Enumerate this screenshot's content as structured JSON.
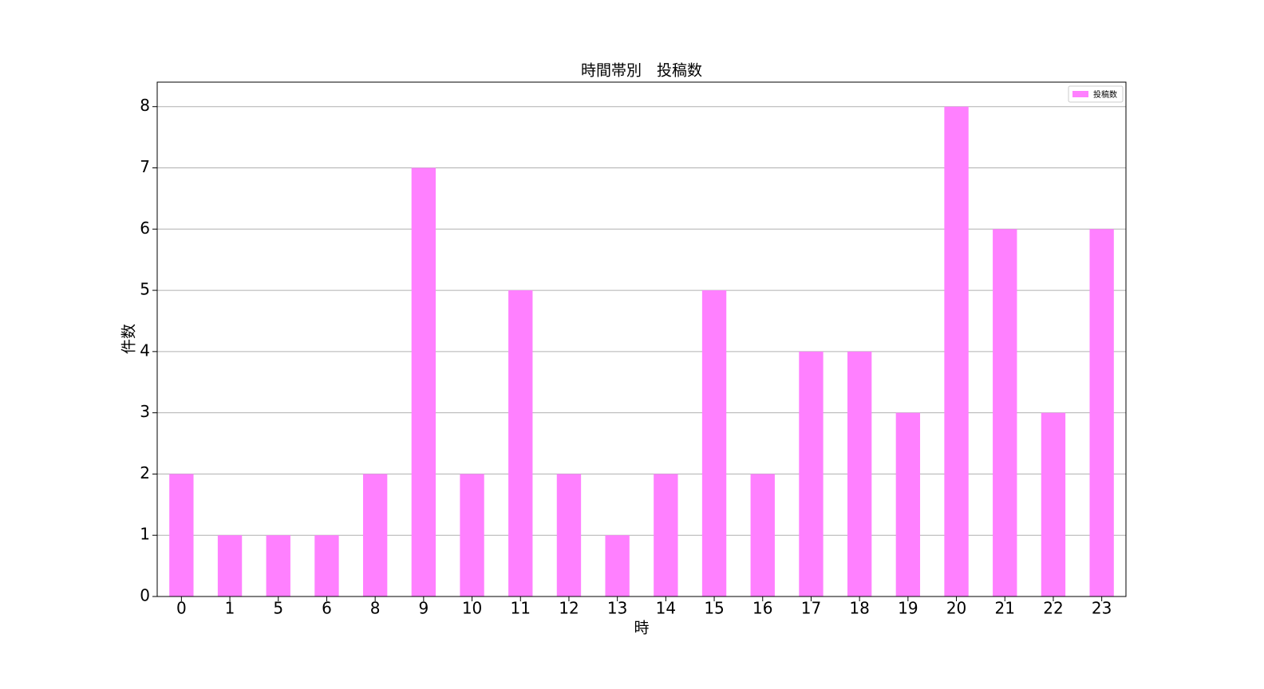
{
  "chart_data": {
    "type": "bar",
    "title": "時間帯別　投稿数",
    "x_label": "時",
    "y_label": "件数",
    "categories": [
      "0",
      "1",
      "5",
      "6",
      "8",
      "9",
      "10",
      "11",
      "12",
      "13",
      "14",
      "15",
      "16",
      "17",
      "18",
      "19",
      "20",
      "21",
      "22",
      "23"
    ],
    "series": [
      {
        "name": "投稿数",
        "color": "#ff80ff",
        "values": [
          2,
          1,
          1,
          1,
          2,
          7,
          2,
          5,
          2,
          1,
          2,
          5,
          2,
          4,
          4,
          3,
          8,
          6,
          3,
          6
        ]
      }
    ],
    "ylim": [
      0,
      8.4
    ],
    "yticks": [
      0,
      1,
      2,
      3,
      4,
      5,
      6,
      7,
      8
    ],
    "grid": true,
    "legend": "upper-right"
  }
}
